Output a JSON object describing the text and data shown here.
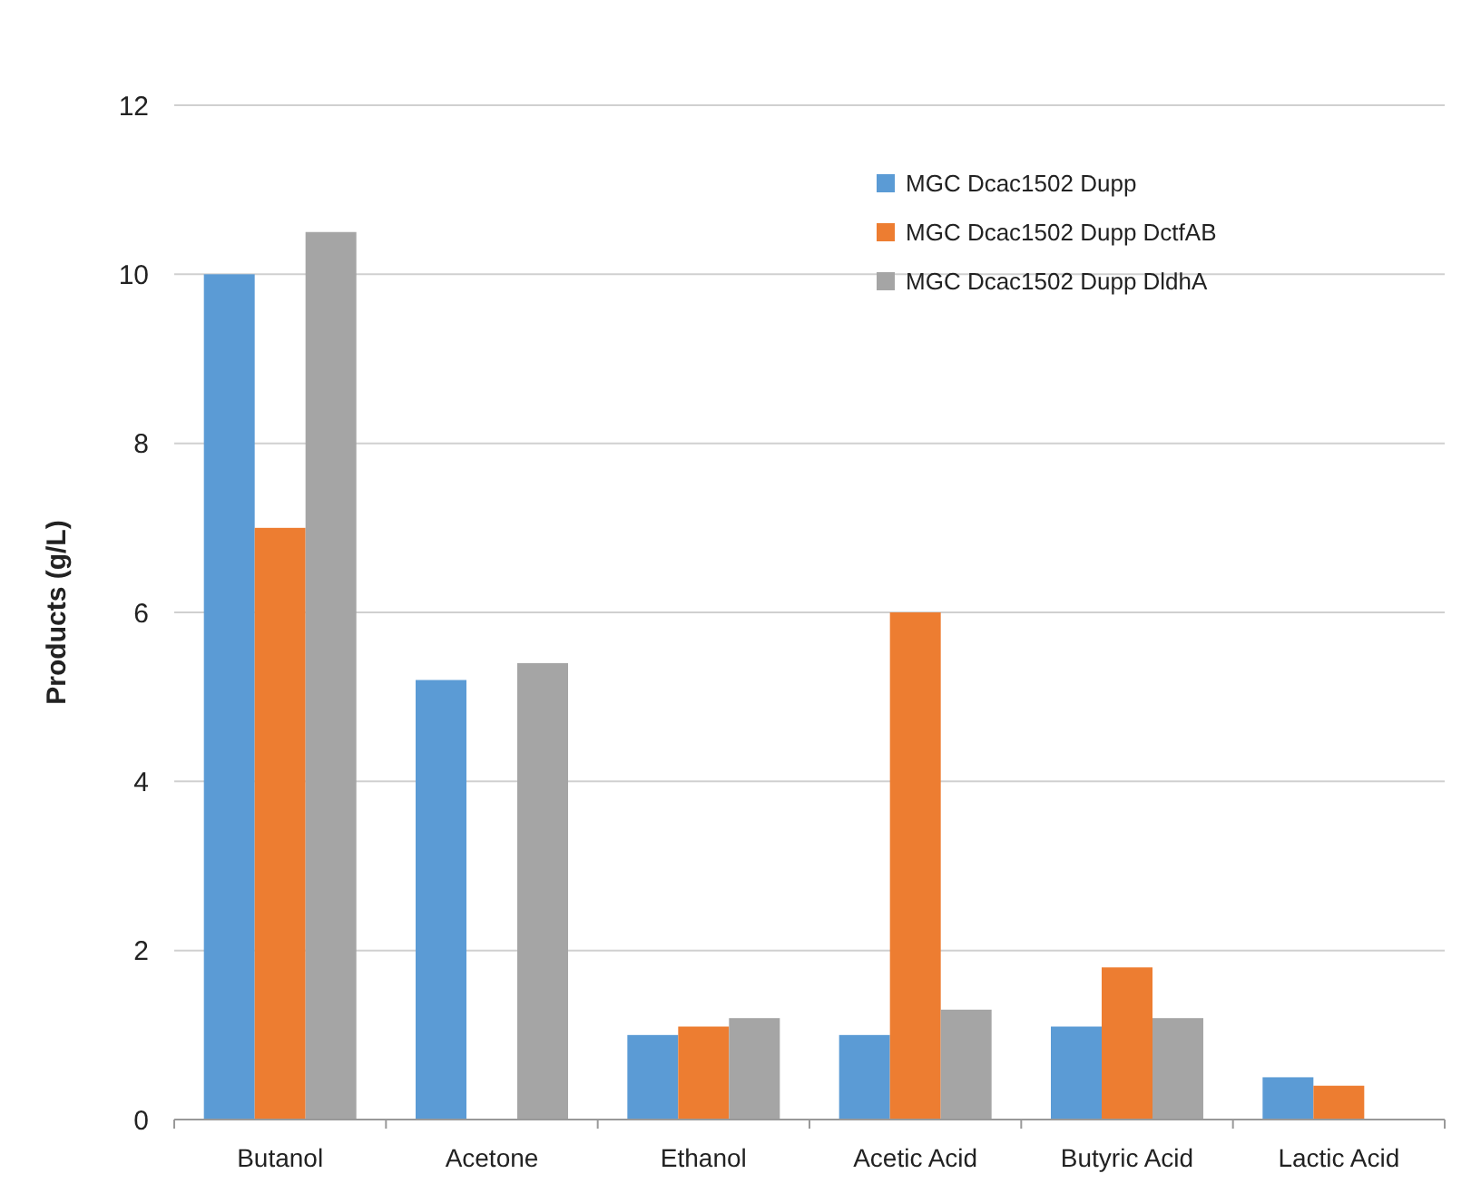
{
  "chart_data": {
    "type": "bar",
    "ylabel": "Products (g/L)",
    "categories": [
      "Butanol",
      "Acetone",
      "Ethanol",
      "Acetic Acid",
      "Butyric Acid",
      "Lactic Acid"
    ],
    "series": [
      {
        "name": "MGC Dcac1502 Dupp",
        "color": "#5b9bd5",
        "values": [
          10,
          5.2,
          1.0,
          1.0,
          1.1,
          0.5
        ]
      },
      {
        "name": "MGC Dcac1502 Dupp DctfAB",
        "color": "#ed7d31",
        "values": [
          7,
          null,
          1.1,
          6.0,
          1.8,
          0.4
        ]
      },
      {
        "name": "MGC Dcac1502 Dupp DldhA",
        "color": "#a5a5a5",
        "values": [
          10.5,
          5.4,
          1.2,
          1.3,
          1.2,
          null
        ]
      }
    ],
    "ylim": [
      0,
      12
    ],
    "yticks": [
      0,
      2,
      4,
      6,
      8,
      10,
      12
    ],
    "grid": "y",
    "legend": "top right"
  }
}
